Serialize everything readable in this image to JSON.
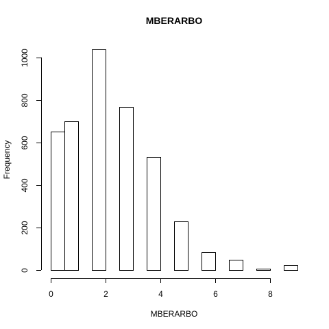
{
  "chart_data": {
    "type": "bar",
    "title": "MBERARBO",
    "xlabel": "MBERARBO",
    "ylabel": "Frequency",
    "bins": [
      {
        "start": 0.0,
        "end": 0.5,
        "value": 651
      },
      {
        "start": 0.5,
        "end": 1.0,
        "value": 698
      },
      {
        "start": 1.5,
        "end": 2.0,
        "value": 1038
      },
      {
        "start": 2.5,
        "end": 3.0,
        "value": 766
      },
      {
        "start": 3.5,
        "end": 4.0,
        "value": 533
      },
      {
        "start": 4.5,
        "end": 5.0,
        "value": 229
      },
      {
        "start": 5.5,
        "end": 6.0,
        "value": 83
      },
      {
        "start": 6.5,
        "end": 7.0,
        "value": 49
      },
      {
        "start": 7.5,
        "end": 8.0,
        "value": 6
      },
      {
        "start": 8.5,
        "end": 9.0,
        "value": 22
      }
    ],
    "xlim": [
      0,
      9
    ],
    "ylim": [
      0,
      1038
    ],
    "xticks": [
      "0",
      "2",
      "4",
      "6",
      "8"
    ],
    "yticks": [
      "0",
      "200",
      "400",
      "600",
      "800",
      "1000"
    ],
    "grid": false,
    "legend": "none"
  }
}
